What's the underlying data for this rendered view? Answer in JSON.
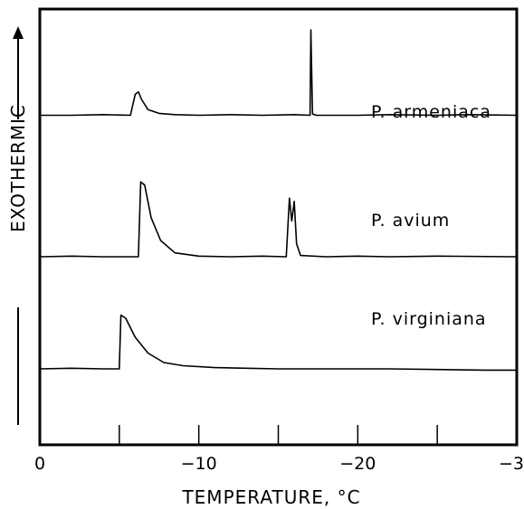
{
  "chart_data": {
    "type": "line",
    "title": "",
    "xlabel": "TEMPERATURE, °C",
    "ylabel": "EXOTHERMIC",
    "xlim": [
      0,
      -30
    ],
    "x_ticks": [
      0,
      -10,
      -20,
      -30
    ],
    "x_minor_ticks": [
      -5,
      -15,
      -25
    ],
    "x_tick_labels": [
      "0",
      "−10",
      "−20",
      "−30"
    ],
    "grid": false,
    "y_units": "relative",
    "series": [
      {
        "name": "P. armeniaca",
        "baseline": 0.25,
        "points": [
          [
            0,
            0.25
          ],
          [
            -2,
            0.25
          ],
          [
            -4,
            0.26
          ],
          [
            -5.7,
            0.25
          ],
          [
            -6.0,
            0.58
          ],
          [
            -6.2,
            0.62
          ],
          [
            -6.4,
            0.5
          ],
          [
            -6.8,
            0.34
          ],
          [
            -7.5,
            0.28
          ],
          [
            -8.5,
            0.26
          ],
          [
            -10,
            0.25
          ],
          [
            -12,
            0.26
          ],
          [
            -14,
            0.25
          ],
          [
            -16,
            0.26
          ],
          [
            -17.0,
            0.25
          ],
          [
            -17.05,
            1.6
          ],
          [
            -17.15,
            0.27
          ],
          [
            -17.4,
            0.25
          ],
          [
            -20,
            0.25
          ],
          [
            -22,
            0.26
          ],
          [
            -25,
            0.25
          ],
          [
            -27,
            0.26
          ],
          [
            -30,
            0.25
          ]
        ]
      },
      {
        "name": "P. avium",
        "baseline": 0.0,
        "points": [
          [
            0,
            0.0
          ],
          [
            -2,
            0.01
          ],
          [
            -4,
            0.0
          ],
          [
            -6.2,
            0.0
          ],
          [
            -6.35,
            1.15
          ],
          [
            -6.6,
            1.1
          ],
          [
            -7.0,
            0.6
          ],
          [
            -7.6,
            0.25
          ],
          [
            -8.5,
            0.06
          ],
          [
            -10,
            0.01
          ],
          [
            -12,
            0.0
          ],
          [
            -14,
            0.01
          ],
          [
            -15.5,
            0.0
          ],
          [
            -15.7,
            0.9
          ],
          [
            -15.85,
            0.55
          ],
          [
            -16.0,
            0.85
          ],
          [
            -16.15,
            0.2
          ],
          [
            -16.4,
            0.02
          ],
          [
            -18,
            0.0
          ],
          [
            -20,
            0.01
          ],
          [
            -22,
            0.0
          ],
          [
            -25,
            0.01
          ],
          [
            -30,
            0.0
          ]
        ]
      },
      {
        "name": "P. virginiana",
        "baseline": 0.0,
        "points": [
          [
            0,
            0.0
          ],
          [
            -2,
            0.01
          ],
          [
            -4,
            0.0
          ],
          [
            -5.0,
            0.0
          ],
          [
            -5.1,
            0.85
          ],
          [
            -5.4,
            0.8
          ],
          [
            -6.0,
            0.5
          ],
          [
            -6.8,
            0.25
          ],
          [
            -7.8,
            0.1
          ],
          [
            -9,
            0.05
          ],
          [
            -11,
            0.02
          ],
          [
            -13,
            0.01
          ],
          [
            -15,
            0.0
          ],
          [
            -18,
            0.0
          ],
          [
            -20,
            0.0
          ],
          [
            -22,
            0.0
          ],
          [
            -25,
            -0.01
          ],
          [
            -28,
            -0.02
          ],
          [
            -30,
            -0.02
          ]
        ]
      }
    ]
  }
}
